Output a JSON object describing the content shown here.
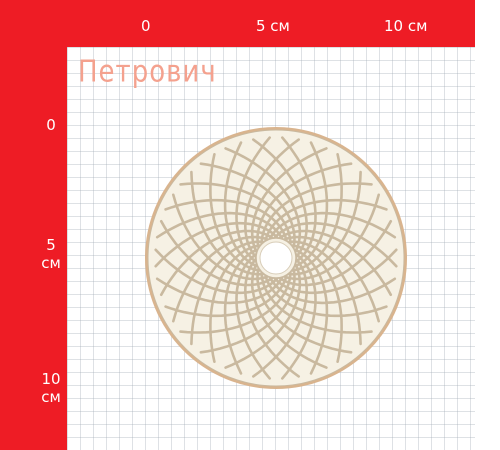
{
  "brand": {
    "name": "Петрович"
  },
  "ruler_top": {
    "labels": [
      "0",
      "5 см",
      "10 см"
    ]
  },
  "ruler_left": {
    "labels": [
      "0",
      "5",
      "см",
      "10",
      "см"
    ]
  },
  "colors": {
    "ruler": "#ee1c25",
    "brand_text": "#f4a18e",
    "disc_face": "#f6f1e4",
    "disc_channels": "#c9b99f",
    "disc_edge": "#d9b48e"
  },
  "product": {
    "type": "polishing-pad-disc",
    "icon": "polishing-disc-icon"
  }
}
